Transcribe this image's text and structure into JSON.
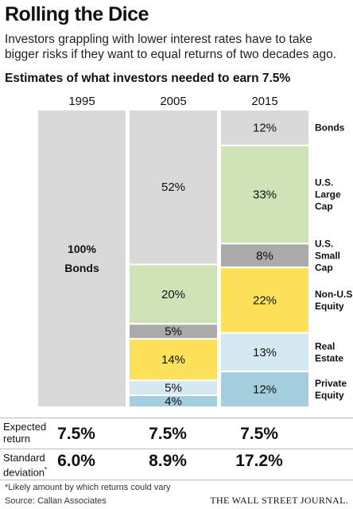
{
  "title": "Rolling the Dice",
  "subtitle": "Investors grappling with lower interest rates have to take bigger risks if they want to equal returns of two decades ago.",
  "chart_heading": "Estimates of what investors needed to earn 7.5%",
  "chart_data": {
    "type": "bar",
    "stacked": true,
    "categories": [
      "1995",
      "2005",
      "2015"
    ],
    "series": [
      {
        "name": "Bonds",
        "values": [
          100,
          52,
          12
        ],
        "color": "#d9d9d9"
      },
      {
        "name": "U.S. Large Cap",
        "values": [
          0,
          20,
          33
        ],
        "color": "#cfe3b6"
      },
      {
        "name": "U.S. Small Cap",
        "values": [
          0,
          5,
          8
        ],
        "color": "#aaaaaa"
      },
      {
        "name": "Non-U.S. Equity",
        "values": [
          0,
          14,
          22
        ],
        "color": "#fde15a"
      },
      {
        "name": "Real Estate",
        "values": [
          0,
          5,
          13
        ],
        "color": "#d5e9f1"
      },
      {
        "name": "Private Equity",
        "values": [
          0,
          4,
          12
        ],
        "color": "#a5cfde"
      }
    ],
    "segment_labels": [
      [
        "100%\nBonds",
        "",
        "",
        "",
        "",
        ""
      ],
      [
        "52%",
        "20%",
        "5%",
        "14%",
        "5%",
        "4%"
      ],
      [
        "12%",
        "33%",
        "8%",
        "22%",
        "13%",
        "12%"
      ]
    ],
    "legend_labels": [
      "Bonds",
      "U.S.\nLarge\nCap",
      "U.S.\nSmall\nCap",
      "Non-U.S.\nEquity",
      "Real\nEstate",
      "Private\nEquity"
    ],
    "ylim": [
      0,
      100
    ],
    "legend": "right"
  },
  "stats": {
    "expected_label": "Expected return",
    "expected": [
      "7.5%",
      "7.5%",
      "7.5%"
    ],
    "stdev_label": "Standard deviation",
    "stdev_mark": "*",
    "stdev": [
      "6.0%",
      "8.9%",
      "17.2%"
    ]
  },
  "footnote": "*Likely amount by which returns could vary",
  "source": "Source: Callan Associates",
  "publisher": "THE WALL STREET JOURNAL."
}
